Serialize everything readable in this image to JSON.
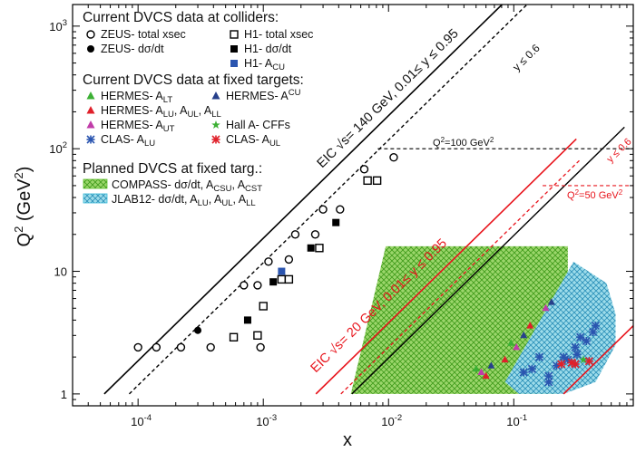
{
  "chart_data": {
    "type": "scatter",
    "xlabel": "x",
    "ylabel": "Q",
    "ylabel_sup": "2",
    "ylabel_unit_pre": " (GeV",
    "ylabel_unit_sup": "2",
    "ylabel_unit_post": ")",
    "x_scale": "log",
    "y_scale": "log",
    "xlim": [
      3e-05,
      0.9
    ],
    "ylim": [
      0.8,
      1500
    ],
    "x_ticks": [
      {
        "value": 0.0001,
        "base": "10",
        "exp": "-4"
      },
      {
        "value": 0.001,
        "base": "10",
        "exp": "-3"
      },
      {
        "value": 0.01,
        "base": "10",
        "exp": "-2"
      },
      {
        "value": 0.1,
        "base": "10",
        "exp": "-1"
      }
    ],
    "y_ticks": [
      {
        "value": 1,
        "label": "1",
        "exp": ""
      },
      {
        "value": 10,
        "label": "10",
        "exp": ""
      },
      {
        "value": 100,
        "label": "10",
        "exp": "2"
      },
      {
        "value": 1000,
        "label": "10",
        "exp": "3"
      }
    ],
    "legend": {
      "colliders_title": "Current DVCS data at colliders:",
      "colliders": [
        {
          "marker": "open-circle",
          "label": "ZEUS- total xsec",
          "color": "#000000"
        },
        {
          "marker": "filled-circle",
          "label": "ZEUS- dσ/dt",
          "color": "#000000"
        },
        {
          "marker": "open-square",
          "label": "H1- total xsec",
          "color": "#000000"
        },
        {
          "marker": "filled-square",
          "label": "H1- dσ/dt",
          "color": "#000000"
        },
        {
          "marker": "filled-square",
          "label": "H1- A",
          "sub": "CU",
          "color": "#2b55b0"
        }
      ],
      "fixed_title": "Current DVCS data at fixed targets:",
      "fixed": [
        {
          "marker": "triangle",
          "label": "HERMES- A",
          "sub": "LT",
          "color": "#3cb034"
        },
        {
          "marker": "triangle",
          "label": "HERMES- A",
          "sup": "CU",
          "color": "#27408b"
        },
        {
          "marker": "triangle",
          "label": "HERMES- A",
          "sub": "LU",
          "rest": ", A",
          "sub2": "UL",
          "rest2": ", A",
          "sub3": "LL",
          "color": "#e0202a"
        },
        {
          "marker": "triangle",
          "label": "HERMES- A",
          "sub": "UT",
          "color": "#c03ca8"
        },
        {
          "marker": "star",
          "label": "Hall A- CFFs",
          "color": "#3cb034"
        },
        {
          "marker": "cross",
          "label": "CLAS- A",
          "sub": "LU",
          "color": "#2b55b0"
        },
        {
          "marker": "cross",
          "label": "CLAS- A",
          "sub": "UL",
          "color": "#e0202a"
        }
      ],
      "planned_title": "Planned DVCS at fixed targ.:",
      "planned": [
        {
          "pattern": "green",
          "label": "COMPASS- dσ/dt, A",
          "sub": "CSU",
          "rest": ", A",
          "sub2": "CST",
          "color": "#5cbf2a"
        },
        {
          "pattern": "cyan",
          "label": "JLAB12- dσ/dt, A",
          "sub": "LU",
          "rest": ", A",
          "sub2": "UL",
          "rest2": ", A",
          "sub3": "LL",
          "color": "#35b8d8"
        }
      ]
    },
    "annotations": {
      "eic140": "EIC √s= 140 GeV, 0.01≤ y ≤ 0.95",
      "eic140_y06": "y ≤ 0.6",
      "eic20": "EIC √s= 20 GeV, 0.01≤ y ≤ 0.95",
      "eic20_y06": "y ≤ 0.6",
      "q2_100_pre": "Q",
      "q2_100_sup": "2",
      "q2_100_post": "=100 GeV",
      "q2_100_sup2": "2",
      "q2_50_pre": "Q",
      "q2_50_sup": "2",
      "q2_50_post": "=50 GeV",
      "q2_50_sup2": "2"
    },
    "lines": {
      "eic140": {
        "s": 19600,
        "y_lo": 0.01,
        "y_hi": 0.95,
        "y06": 0.6,
        "color": "#000000",
        "q2_cut": 100
      },
      "eic20": {
        "s": 400,
        "y_lo": 0.01,
        "y_hi": 0.95,
        "y06": 0.6,
        "color": "#e8141c",
        "q2_cut": 50
      }
    },
    "regions": {
      "compass": {
        "x_range": [
          0.005,
          0.27
        ],
        "q2_range": [
          1,
          16
        ],
        "color": "#5cbf2a"
      },
      "jlab12": {
        "x_range": [
          0.1,
          0.65
        ],
        "q2_range": [
          1,
          12
        ],
        "color": "#35b8d8"
      }
    },
    "series": [
      {
        "name": "ZEUS- total xsec",
        "marker": "open-circle",
        "color": "#000000",
        "points": [
          [
            0.0001,
            2.4
          ],
          [
            0.00014,
            2.4
          ],
          [
            0.00022,
            2.4
          ],
          [
            0.00038,
            2.4
          ],
          [
            0.00095,
            2.4
          ],
          [
            0.0007,
            7.7
          ],
          [
            0.0009,
            7.7
          ],
          [
            0.0011,
            12
          ],
          [
            0.0016,
            12.5
          ],
          [
            0.0018,
            20
          ],
          [
            0.0026,
            20
          ],
          [
            0.003,
            32
          ],
          [
            0.0041,
            32
          ],
          [
            0.0064,
            68
          ],
          [
            0.011,
            85
          ]
        ]
      },
      {
        "name": "ZEUS- dσ/dt",
        "marker": "filled-circle",
        "color": "#000000",
        "points": [
          [
            0.0003,
            3.3
          ]
        ]
      },
      {
        "name": "H1- total xsec",
        "marker": "open-square",
        "color": "#000000",
        "points": [
          [
            0.00058,
            2.9
          ],
          [
            0.0009,
            3.0
          ],
          [
            0.001,
            5.2
          ],
          [
            0.0014,
            8.6
          ],
          [
            0.0016,
            8.6
          ],
          [
            0.0028,
            15.5
          ],
          [
            0.0068,
            55
          ],
          [
            0.0081,
            55
          ]
        ]
      },
      {
        "name": "H1- dσ/dt",
        "marker": "filled-square",
        "color": "#000000",
        "points": [
          [
            0.00075,
            4
          ],
          [
            0.0012,
            8.2
          ],
          [
            0.0024,
            15.5
          ],
          [
            0.0038,
            25
          ]
        ]
      },
      {
        "name": "H1- A",
        "marker": "filled-square",
        "color": "#2b55b0",
        "points": [
          [
            0.0014,
            10
          ]
        ]
      },
      {
        "name": "HERMES- A",
        "marker": "triangle",
        "color": "#3cb034",
        "points": [
          [
            0.05,
            1.6
          ],
          [
            0.095,
            2.6
          ]
        ]
      },
      {
        "name": "HERMES- A",
        "marker": "triangle",
        "color": "#27408b",
        "points": [
          [
            0.066,
            1.7
          ],
          [
            0.12,
            3.0
          ],
          [
            0.2,
            5.6
          ]
        ]
      },
      {
        "name": "HERMES- A",
        "marker": "triangle",
        "color": "#e0202a",
        "points": [
          [
            0.06,
            1.4
          ],
          [
            0.085,
            1.9
          ],
          [
            0.135,
            3.6
          ]
        ]
      },
      {
        "name": "HERMES- A",
        "marker": "triangle",
        "color": "#c03ca8",
        "points": [
          [
            0.055,
            1.5
          ],
          [
            0.105,
            2.4
          ],
          [
            0.18,
            5.0
          ]
        ]
      },
      {
        "name": "Hall A- CFFs",
        "marker": "star",
        "color": "#3cb034",
        "points": [
          [
            0.36,
            1.9
          ]
        ]
      },
      {
        "name": "CLAS- A",
        "marker": "cross",
        "color": "#2b55b0",
        "points": [
          [
            0.12,
            1.5
          ],
          [
            0.14,
            1.6
          ],
          [
            0.16,
            2.0
          ],
          [
            0.19,
            1.25
          ],
          [
            0.19,
            1.4
          ],
          [
            0.22,
            1.7
          ],
          [
            0.25,
            2.0
          ],
          [
            0.27,
            1.9
          ],
          [
            0.31,
            2.4
          ],
          [
            0.32,
            2.1
          ],
          [
            0.34,
            2.9
          ],
          [
            0.38,
            2.7
          ],
          [
            0.43,
            3.2
          ],
          [
            0.45,
            3.6
          ]
        ]
      },
      {
        "name": "CLAS- A",
        "marker": "cross",
        "color": "#e0202a",
        "points": [
          [
            0.24,
            1.75
          ],
          [
            0.29,
            1.8
          ],
          [
            0.31,
            1.75
          ],
          [
            0.4,
            1.85
          ]
        ]
      }
    ]
  }
}
